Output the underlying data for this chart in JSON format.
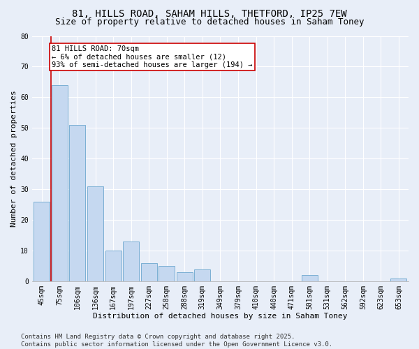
{
  "title1": "81, HILLS ROAD, SAHAM HILLS, THETFORD, IP25 7EW",
  "title2": "Size of property relative to detached houses in Saham Toney",
  "xlabel": "Distribution of detached houses by size in Saham Toney",
  "ylabel": "Number of detached properties",
  "bins": [
    "45sqm",
    "75sqm",
    "106sqm",
    "136sqm",
    "167sqm",
    "197sqm",
    "227sqm",
    "258sqm",
    "288sqm",
    "319sqm",
    "349sqm",
    "379sqm",
    "410sqm",
    "440sqm",
    "471sqm",
    "501sqm",
    "531sqm",
    "562sqm",
    "592sqm",
    "623sqm",
    "653sqm"
  ],
  "values": [
    26,
    64,
    51,
    31,
    10,
    13,
    6,
    5,
    3,
    4,
    0,
    0,
    0,
    0,
    0,
    2,
    0,
    0,
    0,
    0,
    1
  ],
  "bar_color": "#c5d8f0",
  "bar_edge_color": "#7bafd4",
  "vline_x": 0.5,
  "vline_color": "#cc0000",
  "annotation_text": "81 HILLS ROAD: 70sqm\n← 6% of detached houses are smaller (12)\n93% of semi-detached houses are larger (194) →",
  "annotation_box_color": "#ffffff",
  "annotation_box_edge": "#cc0000",
  "footer1": "Contains HM Land Registry data © Crown copyright and database right 2025.",
  "footer2": "Contains public sector information licensed under the Open Government Licence v3.0.",
  "ylim": [
    0,
    80
  ],
  "yticks": [
    0,
    10,
    20,
    30,
    40,
    50,
    60,
    70,
    80
  ],
  "bg_color": "#e8eef8",
  "grid_color": "#ffffff",
  "title_fontsize": 10,
  "subtitle_fontsize": 9,
  "axis_label_fontsize": 8,
  "tick_fontsize": 7,
  "footer_fontsize": 6.5,
  "annotation_fontsize": 7.5
}
